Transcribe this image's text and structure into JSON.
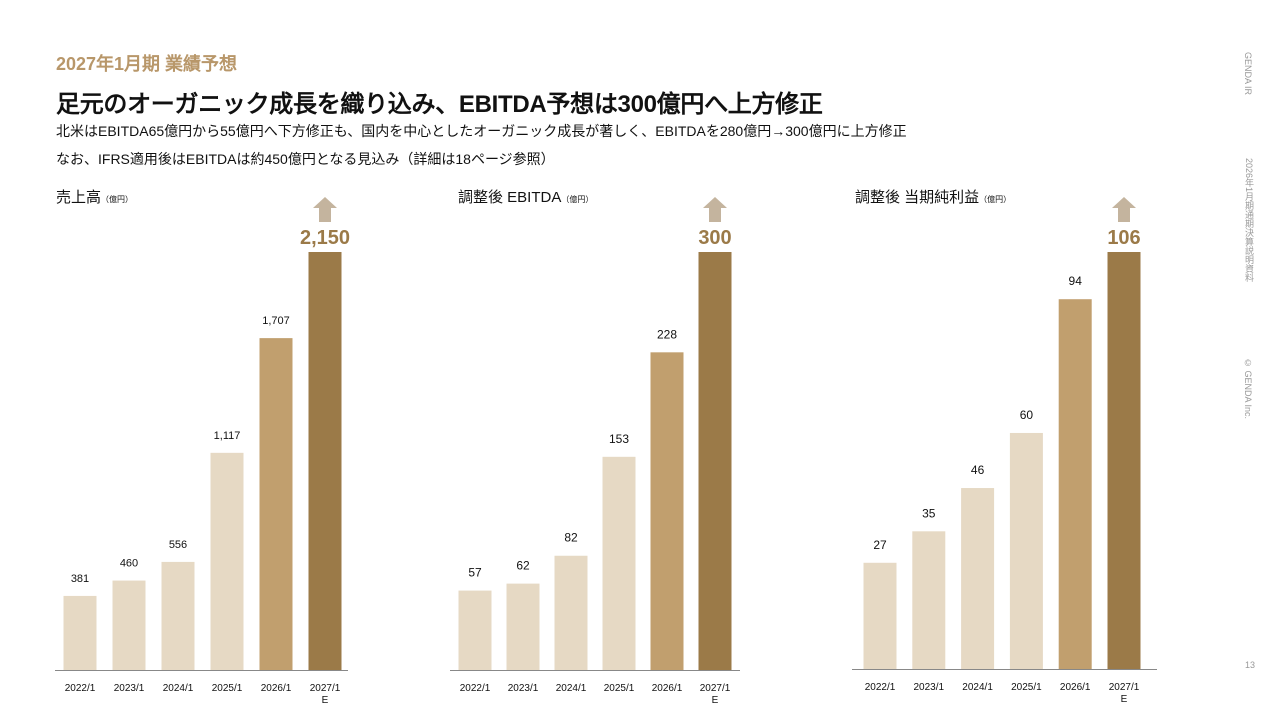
{
  "header": {
    "eyebrow": "2027年1月期  業績予想",
    "headline": "足元のオーガニック成長を織り込み、EBITDA予想は300億円へ上方修正",
    "sub1": "北米はEBITDA65億円から55億円へ下方修正も、国内を中心としたオーガニック成長が著しく、EBITDAを280億円→300億円に上方修正",
    "sub2": "なお、IFRS適用後はEBITDAは約450億円となる見込み（詳細は18ページ参照）"
  },
  "side": {
    "brand": "GENDA IR",
    "doc": "2026年1月期通期決算説明資料",
    "copyright": "© GENDA Inc.",
    "page": "13"
  },
  "colors": {
    "actual": "#e6d9c4",
    "latest": "#c19f6e",
    "forecast": "#9b7a48",
    "arrow": "#c4b49e",
    "accent": "#b8976a"
  },
  "chart_data": [
    {
      "type": "bar",
      "title": "売上高",
      "unit": "（億円）",
      "categories": [
        "2022/1",
        "2023/1",
        "2024/1",
        "2025/1",
        "2026/1",
        "2027/1 E"
      ],
      "values": [
        381,
        460,
        556,
        1117,
        1707,
        2150
      ],
      "labels": [
        "381",
        "460",
        "556",
        "1,117",
        "1,707",
        "2,150"
      ],
      "ylim": [
        0,
        2150
      ],
      "forecast_arrow": true
    },
    {
      "type": "bar",
      "title": "調整後 EBITDA",
      "unit": "（億円）",
      "categories": [
        "2022/1",
        "2023/1",
        "2024/1",
        "2025/1",
        "2026/1",
        "2027/1 E"
      ],
      "values": [
        57,
        62,
        82,
        153,
        228,
        300
      ],
      "labels": [
        "57",
        "62",
        "82",
        "153",
        "228",
        "300"
      ],
      "ylim": [
        0,
        300
      ],
      "forecast_arrow": true
    },
    {
      "type": "bar",
      "title": "調整後 当期純利益",
      "unit": "（億円）",
      "categories": [
        "2022/1",
        "2023/1",
        "2024/1",
        "2025/1",
        "2026/1",
        "2027/1 E"
      ],
      "values": [
        27,
        35,
        46,
        60,
        94,
        106
      ],
      "labels": [
        "27",
        "35",
        "46",
        "60",
        "94",
        "106"
      ],
      "ylim": [
        0,
        106
      ],
      "forecast_arrow": true
    }
  ]
}
